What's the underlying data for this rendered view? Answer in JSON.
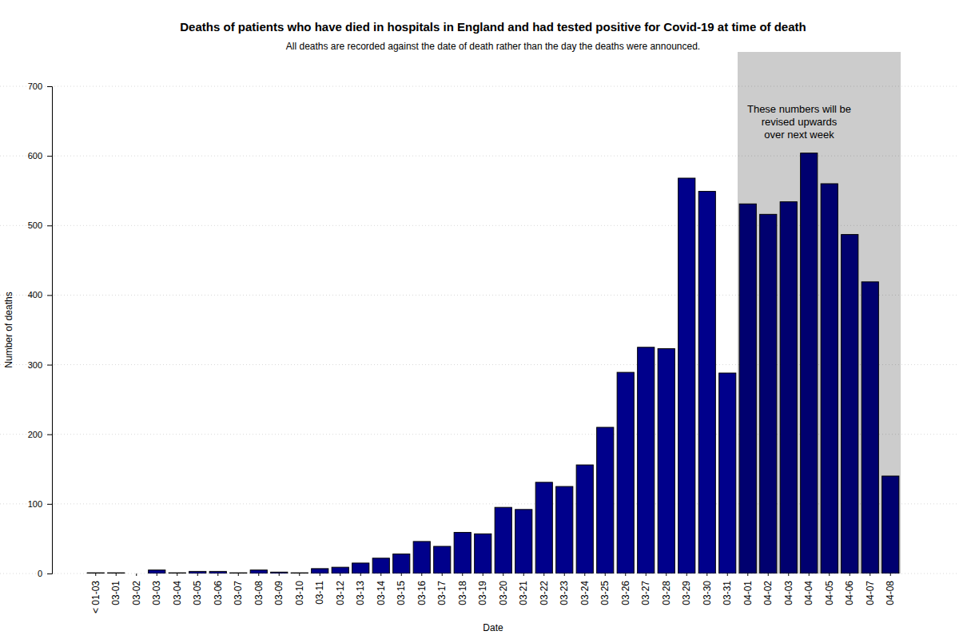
{
  "chart_data": {
    "type": "bar",
    "title": "Deaths of patients who have died in hospitals in England and had tested positive for Covid-19 at time of death",
    "subtitle": "All deaths are recorded against the date of death rather than the day the deaths were announced.",
    "x_label": "Date",
    "y_label": "Number of deaths",
    "categories": [
      "< 01-03",
      "03-01",
      "03-02",
      "03-03",
      "03-04",
      "03-05",
      "03-06",
      "03-07",
      "03-08",
      "03-09",
      "03-10",
      "03-11",
      "03-12",
      "03-13",
      "03-14",
      "03-15",
      "03-16",
      "03-17",
      "03-18",
      "03-19",
      "03-20",
      "03-21",
      "03-22",
      "03-23",
      "03-24",
      "03-25",
      "03-26",
      "03-27",
      "03-28",
      "03-29",
      "03-30",
      "03-31",
      "04-01",
      "04-02",
      "04-03",
      "04-04",
      "04-05",
      "04-06",
      "04-07",
      "04-08"
    ],
    "values": [
      1,
      1,
      0,
      5,
      1,
      3,
      3,
      1,
      5,
      2,
      1,
      7,
      9,
      15,
      22,
      28,
      46,
      39,
      59,
      57,
      95,
      92,
      131,
      125,
      156,
      210,
      289,
      325,
      323,
      568,
      549,
      288,
      531,
      516,
      534,
      604,
      560,
      487,
      419,
      140
    ],
    "color": "#00008b",
    "ylim": [
      0,
      700
    ],
    "yticks": [
      0,
      100,
      200,
      300,
      400,
      500,
      600,
      700
    ],
    "grid": true,
    "annotations": [
      {
        "text": [
          "These numbers will be",
          "revised upwards",
          "over next week"
        ],
        "from": "04-01",
        "to": "04-08"
      }
    ]
  }
}
